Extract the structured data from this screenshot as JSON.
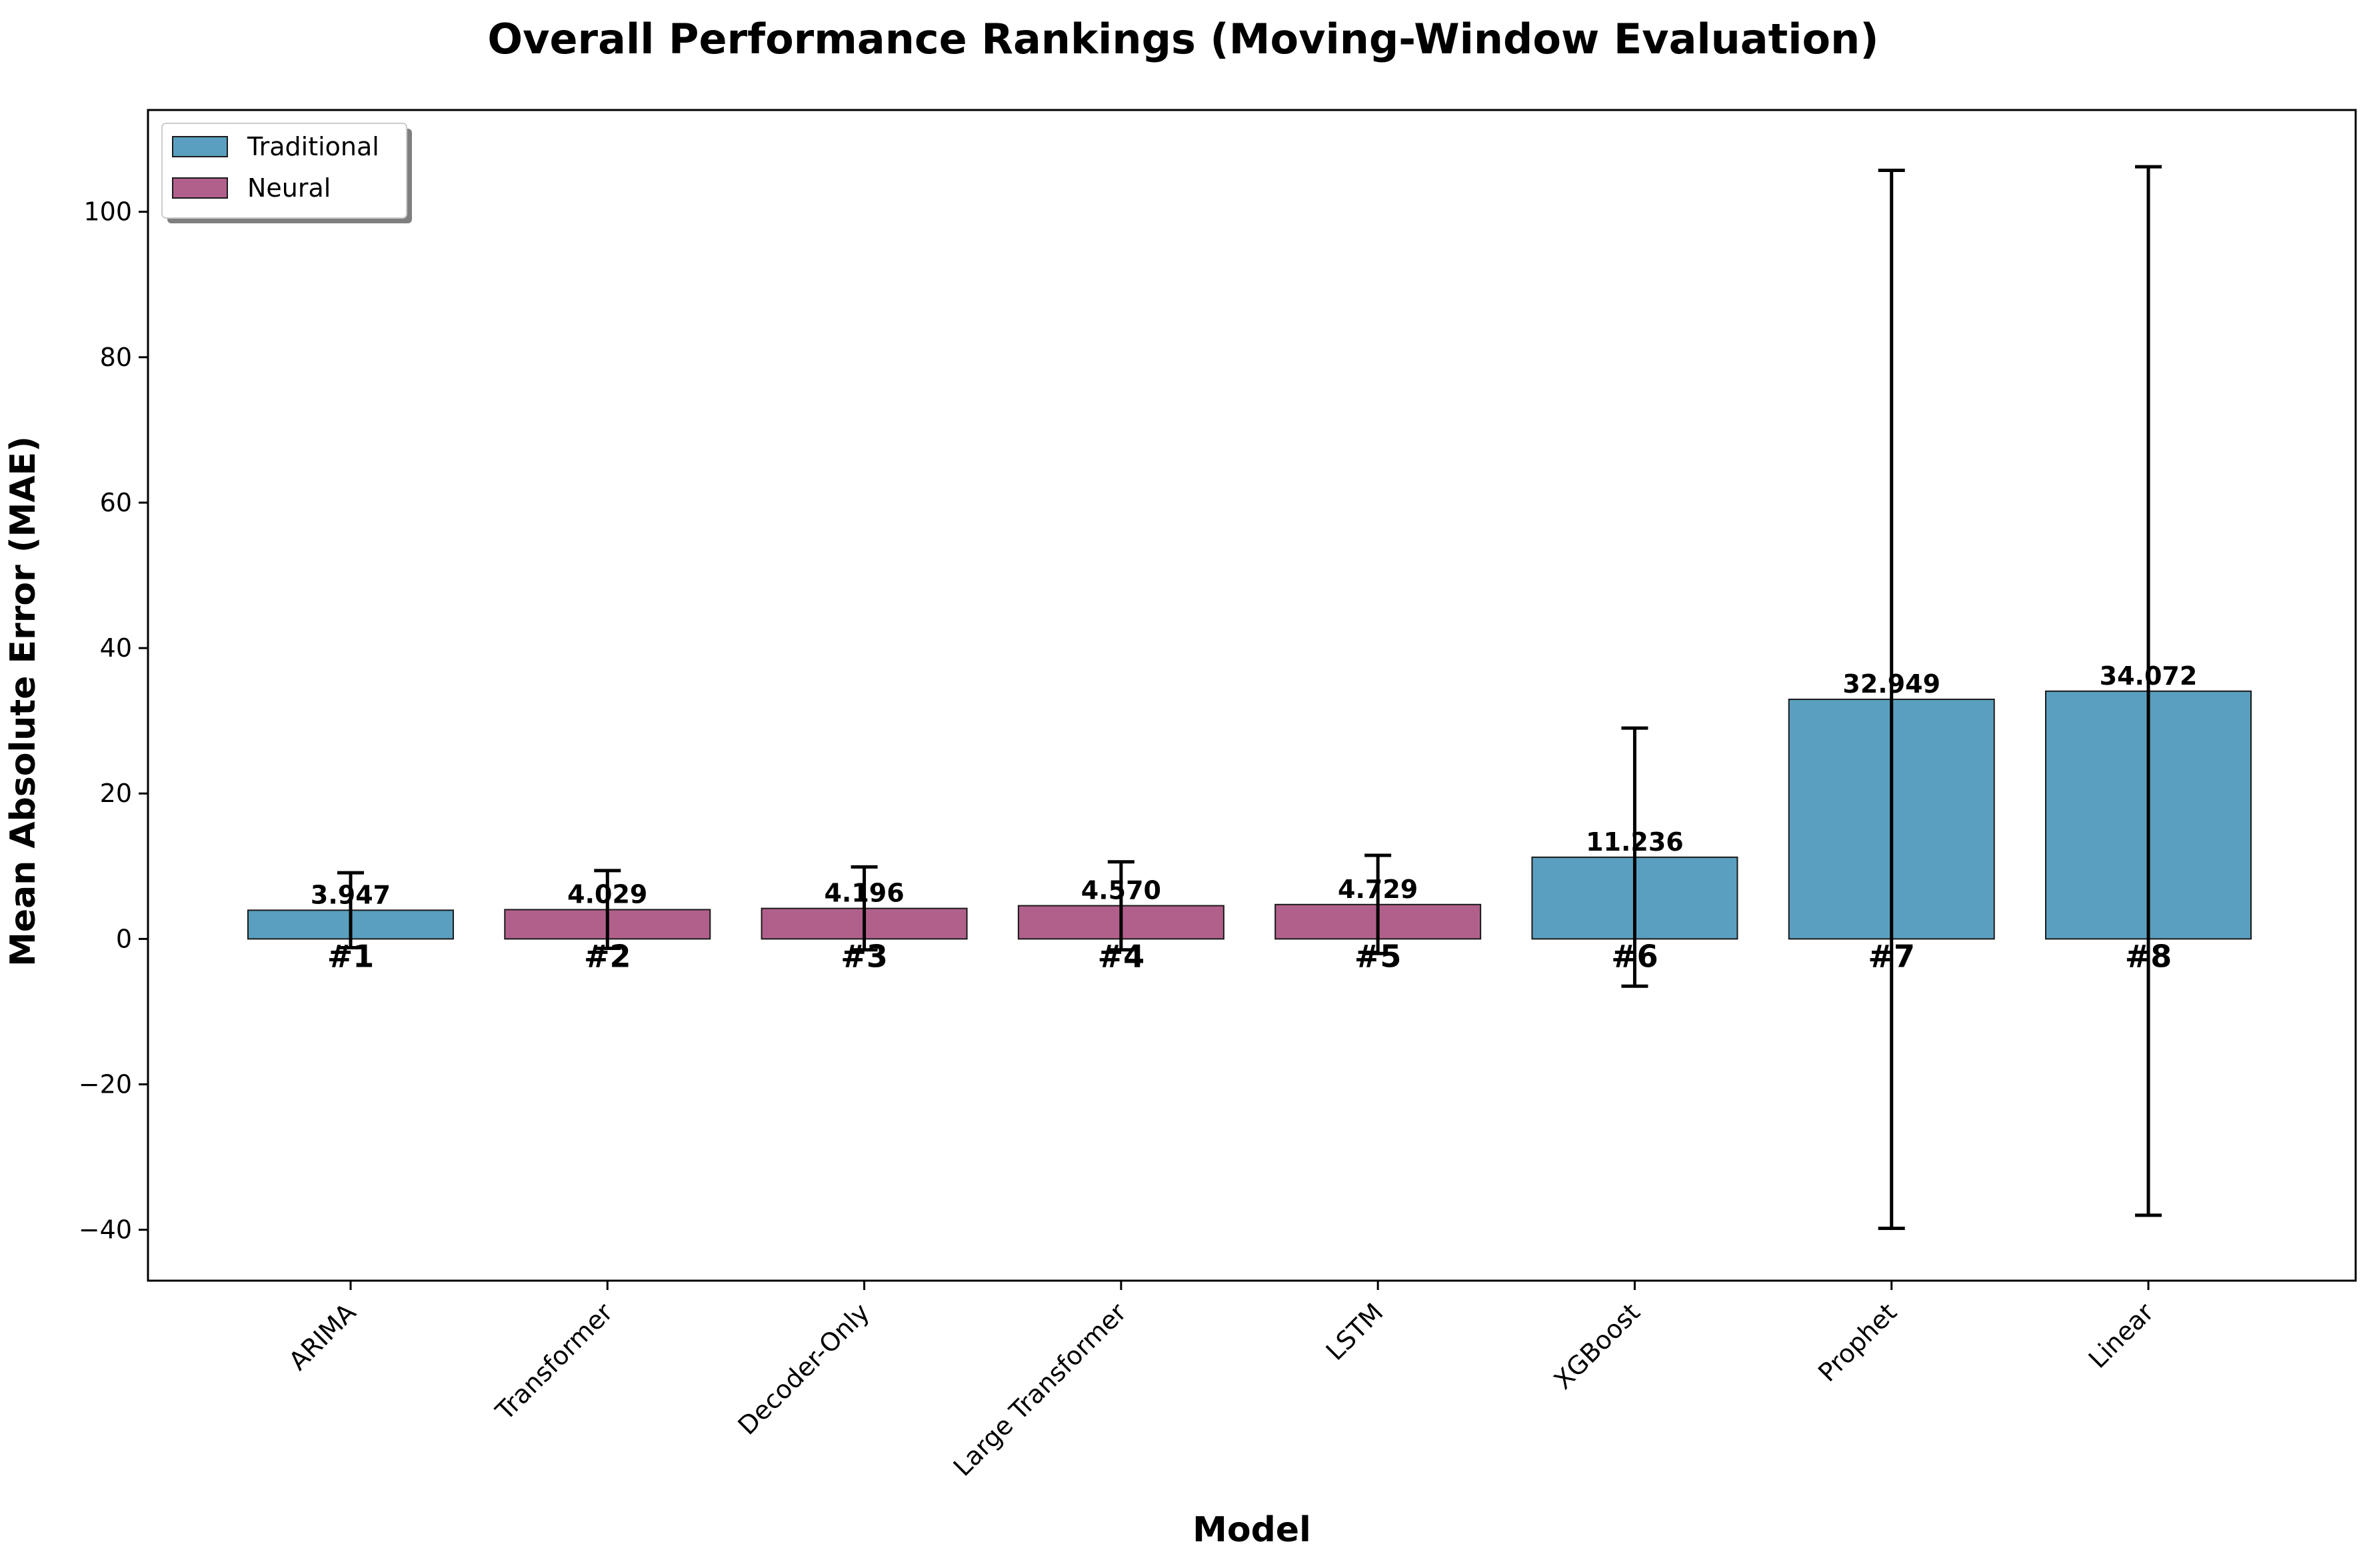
{
  "colors": {
    "traditional": "#5a9fbf",
    "neural": "#b1608b",
    "edge": "#1a1a1a",
    "errorbar": "#000000"
  },
  "chart_data": {
    "type": "bar",
    "title": "Overall Performance Rankings (Moving-Window Evaluation)",
    "xlabel": "Model",
    "ylabel": "Mean Absolute Error (MAE)",
    "ylim": [
      -47,
      114
    ],
    "yticks": [
      -40,
      -20,
      0,
      20,
      40,
      60,
      80,
      100
    ],
    "ytick_labels": [
      "−40",
      "−20",
      "0",
      "20",
      "40",
      "60",
      "80",
      "100"
    ],
    "grid": false,
    "legend_position": "top-left",
    "legend": [
      {
        "label": "Traditional",
        "group": "traditional"
      },
      {
        "label": "Neural",
        "group": "neural"
      }
    ],
    "categories": [
      "ARIMA",
      "Transformer",
      "Decoder-Only",
      "Large Transformer",
      "LSTM",
      "XGBoost",
      "Prophet",
      "Linear"
    ],
    "values": [
      3.947,
      4.029,
      4.196,
      4.57,
      4.729,
      11.236,
      32.949,
      34.072
    ],
    "value_labels": [
      "3.947",
      "4.029",
      "4.196",
      "4.570",
      "4.729",
      "11.236",
      "32.949",
      "34.072"
    ],
    "error_low": [
      -1.2,
      -1.3,
      -1.5,
      -1.5,
      -2.0,
      -6.5,
      -39.8,
      -38.0
    ],
    "error_high": [
      9.1,
      9.4,
      9.9,
      10.6,
      11.5,
      29.0,
      105.7,
      106.2
    ],
    "groups": [
      "traditional",
      "neural",
      "neural",
      "neural",
      "neural",
      "traditional",
      "traditional",
      "traditional"
    ],
    "ranks": [
      "#1",
      "#2",
      "#3",
      "#4",
      "#5",
      "#6",
      "#7",
      "#8"
    ]
  }
}
